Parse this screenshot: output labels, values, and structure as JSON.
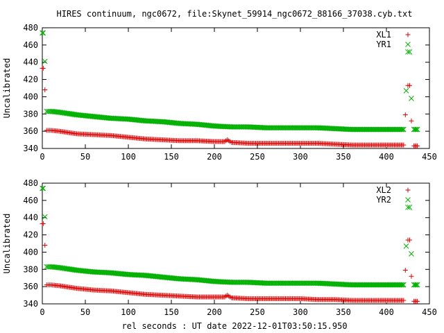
{
  "title": "HIRES continuum, ngc0672, file:Skynet_59914_ngc0672_88166_37038.cyb.txt",
  "xlabel": "rel seconds : UT date 2022-12-01T03:50:15.950",
  "colors": {
    "red": "#dd0000",
    "green": "#00b000"
  },
  "chart_data": [
    {
      "type": "scatter",
      "ylabel": "Uncalibrated",
      "xlim": [
        0,
        450
      ],
      "ylim": [
        340,
        480
      ],
      "xticks": [
        0,
        50,
        100,
        150,
        200,
        250,
        300,
        350,
        400,
        450
      ],
      "yticks": [
        340,
        360,
        380,
        400,
        420,
        440,
        460,
        480
      ],
      "legend": "top-right",
      "series": [
        {
          "name": "XL1",
          "marker": "+",
          "color": "#dd0000",
          "x": [
            0,
            1,
            3,
            5,
            10,
            20,
            40,
            60,
            80,
            100,
            120,
            140,
            160,
            180,
            200,
            212,
            215,
            220,
            240,
            260,
            280,
            300,
            320,
            340,
            360,
            380,
            400,
            420,
            422,
            425,
            427,
            429,
            432,
            436
          ],
          "y": [
            433,
            433,
            408,
            361,
            361,
            360,
            357,
            356,
            355,
            353,
            351,
            350,
            349,
            349,
            348,
            348,
            350,
            347,
            346,
            346,
            346,
            346,
            346,
            345,
            344,
            344,
            344,
            344,
            379,
            413,
            413,
            372,
            343,
            343
          ]
        },
        {
          "name": "YR1",
          "marker": "x",
          "color": "#00b000",
          "x": [
            0,
            1,
            3,
            5,
            10,
            20,
            40,
            60,
            80,
            100,
            120,
            140,
            160,
            180,
            200,
            220,
            240,
            260,
            280,
            300,
            320,
            340,
            360,
            380,
            400,
            420,
            423,
            425,
            427,
            429,
            432,
            436
          ],
          "y": [
            474,
            474,
            441,
            383,
            383,
            382,
            379,
            377,
            375,
            374,
            372,
            371,
            369,
            368,
            366,
            365,
            365,
            364,
            364,
            364,
            364,
            363,
            362,
            362,
            362,
            362,
            407,
            452,
            452,
            398,
            362,
            362
          ]
        }
      ]
    },
    {
      "type": "scatter",
      "ylabel": "Uncalibrated",
      "xlim": [
        0,
        450
      ],
      "ylim": [
        340,
        480
      ],
      "xticks": [
        0,
        50,
        100,
        150,
        200,
        250,
        300,
        350,
        400,
        450
      ],
      "yticks": [
        340,
        360,
        380,
        400,
        420,
        440,
        460,
        480
      ],
      "legend": "top-right",
      "series": [
        {
          "name": "XL2",
          "marker": "+",
          "color": "#dd0000",
          "x": [
            0,
            1,
            3,
            5,
            10,
            20,
            40,
            60,
            80,
            100,
            120,
            140,
            160,
            180,
            200,
            212,
            215,
            220,
            240,
            260,
            280,
            300,
            320,
            340,
            360,
            380,
            400,
            420,
            422,
            425,
            427,
            429,
            432,
            436
          ],
          "y": [
            433,
            433,
            408,
            362,
            362,
            361,
            358,
            356,
            355,
            353,
            351,
            350,
            349,
            348,
            348,
            348,
            350,
            347,
            346,
            346,
            346,
            346,
            345,
            345,
            344,
            344,
            344,
            344,
            379,
            414,
            414,
            372,
            343,
            343
          ]
        },
        {
          "name": "YR2",
          "marker": "x",
          "color": "#00b000",
          "x": [
            0,
            1,
            3,
            5,
            10,
            20,
            40,
            60,
            80,
            100,
            120,
            140,
            160,
            180,
            200,
            220,
            240,
            260,
            280,
            300,
            320,
            340,
            360,
            380,
            400,
            420,
            423,
            425,
            427,
            429,
            432,
            436
          ],
          "y": [
            474,
            474,
            441,
            383,
            383,
            382,
            379,
            377,
            376,
            374,
            373,
            371,
            369,
            368,
            366,
            365,
            365,
            364,
            364,
            364,
            364,
            363,
            362,
            362,
            362,
            362,
            407,
            452,
            452,
            398,
            362,
            362
          ]
        }
      ]
    }
  ]
}
